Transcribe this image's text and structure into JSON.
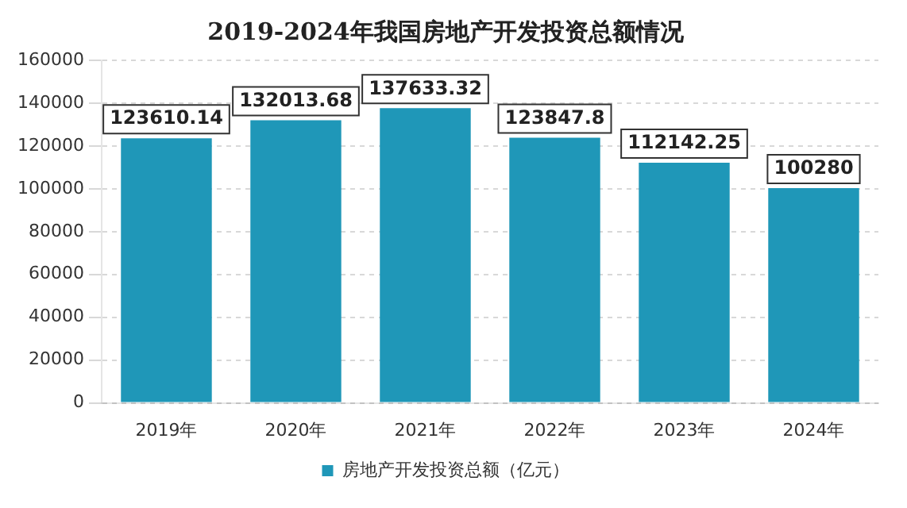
{
  "chart_data": {
    "type": "bar",
    "title": "2019-2024年我国房地产开发投资总额情况",
    "categories": [
      "2019年",
      "2020年",
      "2021年",
      "2022年",
      "2023年",
      "2024年"
    ],
    "series": [
      {
        "name": "房地产开发投资总额（亿元）",
        "color": "#1f97b8",
        "values": [
          123610.14,
          132013.68,
          137633.32,
          123847.8,
          112142.25,
          100280
        ]
      }
    ],
    "ylim": [
      0,
      160000
    ],
    "yticks": [
      0,
      20000,
      40000,
      60000,
      80000,
      100000,
      120000,
      140000,
      160000
    ],
    "grid": "y",
    "legend": "bottom",
    "data_labels": true
  }
}
